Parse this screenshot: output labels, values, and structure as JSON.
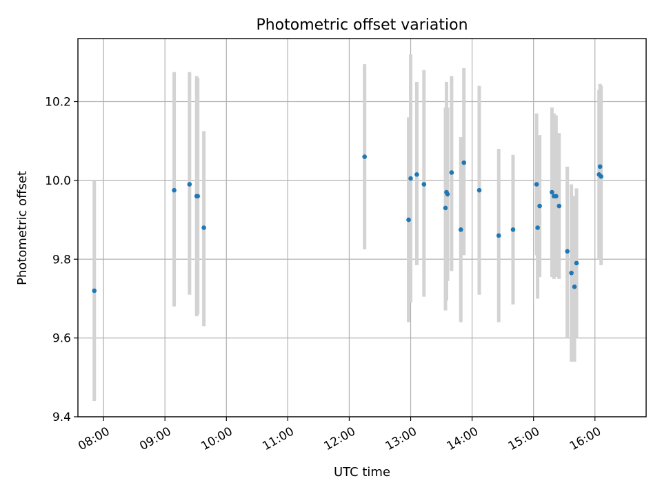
{
  "chart_data": {
    "type": "scatter",
    "title": "Photometric offset variation",
    "xlabel": "UTC time",
    "ylabel": "Photometric offset",
    "xlim": [
      "07:35",
      "16:50"
    ],
    "ylim": [
      9.4,
      10.36
    ],
    "grid": true,
    "x_ticks": [
      "08:00",
      "09:00",
      "10:00",
      "11:00",
      "12:00",
      "13:00",
      "14:00",
      "15:00",
      "16:00"
    ],
    "y_ticks": [
      "9.4",
      "9.6",
      "9.8",
      "10.0",
      "10.2"
    ],
    "series": [
      {
        "marker_color": "#1f77b4",
        "errorbar_color": "#d3d3d3",
        "points": [
          {
            "x": "07:51",
            "y": 9.72,
            "ylow": 9.44,
            "yhigh": 10.0
          },
          {
            "x": "09:09",
            "y": 9.975,
            "ylow": 9.68,
            "yhigh": 10.275
          },
          {
            "x": "09:24",
            "y": 9.99,
            "ylow": 9.71,
            "yhigh": 10.275
          },
          {
            "x": "09:31",
            "y": 9.96,
            "ylow": 9.655,
            "yhigh": 10.265
          },
          {
            "x": "09:32",
            "y": 9.96,
            "ylow": 9.66,
            "yhigh": 10.26
          },
          {
            "x": "09:38",
            "y": 9.88,
            "ylow": 9.63,
            "yhigh": 10.125
          },
          {
            "x": "12:15",
            "y": 10.06,
            "ylow": 9.825,
            "yhigh": 10.295
          },
          {
            "x": "12:58",
            "y": 9.9,
            "ylow": 9.64,
            "yhigh": 10.16
          },
          {
            "x": "13:00",
            "y": 10.005,
            "ylow": 9.69,
            "yhigh": 10.32
          },
          {
            "x": "13:06",
            "y": 10.015,
            "ylow": 9.785,
            "yhigh": 10.25
          },
          {
            "x": "13:13",
            "y": 9.99,
            "ylow": 9.705,
            "yhigh": 10.28
          },
          {
            "x": "13:34",
            "y": 9.93,
            "ylow": 9.67,
            "yhigh": 10.185
          },
          {
            "x": "13:35",
            "y": 9.97,
            "ylow": 9.695,
            "yhigh": 10.25
          },
          {
            "x": "13:36",
            "y": 9.965,
            "ylow": 9.745,
            "yhigh": 10.185
          },
          {
            "x": "13:40",
            "y": 10.02,
            "ylow": 9.77,
            "yhigh": 10.265
          },
          {
            "x": "13:49",
            "y": 9.875,
            "ylow": 9.64,
            "yhigh": 10.11
          },
          {
            "x": "13:52",
            "y": 10.045,
            "ylow": 9.81,
            "yhigh": 10.285
          },
          {
            "x": "14:07",
            "y": 9.975,
            "ylow": 9.71,
            "yhigh": 10.24
          },
          {
            "x": "14:26",
            "y": 9.86,
            "ylow": 9.64,
            "yhigh": 10.08
          },
          {
            "x": "14:40",
            "y": 9.875,
            "ylow": 9.685,
            "yhigh": 10.065
          },
          {
            "x": "15:03",
            "y": 9.99,
            "ylow": 9.81,
            "yhigh": 10.17
          },
          {
            "x": "15:04",
            "y": 9.88,
            "ylow": 9.7,
            "yhigh": 10.06
          },
          {
            "x": "15:06",
            "y": 9.935,
            "ylow": 9.755,
            "yhigh": 10.115
          },
          {
            "x": "15:18",
            "y": 9.97,
            "ylow": 9.755,
            "yhigh": 10.185
          },
          {
            "x": "15:20",
            "y": 9.96,
            "ylow": 9.75,
            "yhigh": 10.17
          },
          {
            "x": "15:22",
            "y": 9.96,
            "ylow": 9.755,
            "yhigh": 10.165
          },
          {
            "x": "15:25",
            "y": 9.935,
            "ylow": 9.75,
            "yhigh": 10.12
          },
          {
            "x": "15:33",
            "y": 9.82,
            "ylow": 9.6,
            "yhigh": 10.035
          },
          {
            "x": "15:37",
            "y": 9.765,
            "ylow": 9.54,
            "yhigh": 9.99
          },
          {
            "x": "15:40",
            "y": 9.73,
            "ylow": 9.54,
            "yhigh": 9.96
          },
          {
            "x": "15:42",
            "y": 9.79,
            "ylow": 9.6,
            "yhigh": 9.98
          },
          {
            "x": "16:04",
            "y": 10.015,
            "ylow": 9.8,
            "yhigh": 10.23
          },
          {
            "x": "16:05",
            "y": 10.035,
            "ylow": 9.82,
            "yhigh": 10.245
          },
          {
            "x": "16:06",
            "y": 10.01,
            "ylow": 9.785,
            "yhigh": 10.24
          }
        ]
      }
    ]
  }
}
